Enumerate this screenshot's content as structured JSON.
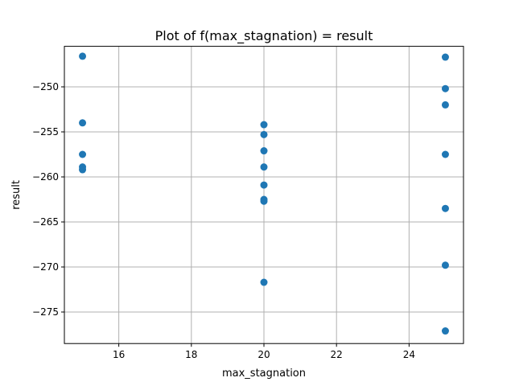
{
  "chart_data": {
    "type": "scatter",
    "title": "Plot of f(max_stagnation) = result",
    "xlabel": "max_stagnation",
    "ylabel": "result",
    "xlim": [
      14.5,
      25.5
    ],
    "ylim": [
      -278.5,
      -245.5
    ],
    "xticks": [
      16,
      18,
      20,
      22,
      24
    ],
    "xtick_labels": [
      "16",
      "18",
      "20",
      "22",
      "24"
    ],
    "yticks": [
      -275,
      -270,
      -265,
      -260,
      -255,
      -250
    ],
    "ytick_labels": [
      "−275",
      "−270",
      "−265",
      "−260",
      "−255",
      "−250"
    ],
    "grid": true,
    "marker_color": "#1f77b4",
    "points": [
      {
        "x": 15,
        "y": -246.6
      },
      {
        "x": 15,
        "y": -254.0
      },
      {
        "x": 15,
        "y": -257.5
      },
      {
        "x": 15,
        "y": -258.9
      },
      {
        "x": 15,
        "y": -259.2
      },
      {
        "x": 20,
        "y": -254.2
      },
      {
        "x": 20,
        "y": -255.3
      },
      {
        "x": 20,
        "y": -257.1
      },
      {
        "x": 20,
        "y": -258.9
      },
      {
        "x": 20,
        "y": -260.9
      },
      {
        "x": 20,
        "y": -262.5
      },
      {
        "x": 20,
        "y": -262.7
      },
      {
        "x": 20,
        "y": -271.7
      },
      {
        "x": 25,
        "y": -246.7
      },
      {
        "x": 25,
        "y": -250.2
      },
      {
        "x": 25,
        "y": -252.0
      },
      {
        "x": 25,
        "y": -257.5
      },
      {
        "x": 25,
        "y": -263.5
      },
      {
        "x": 25,
        "y": -269.8
      },
      {
        "x": 25,
        "y": -277.1
      }
    ]
  }
}
